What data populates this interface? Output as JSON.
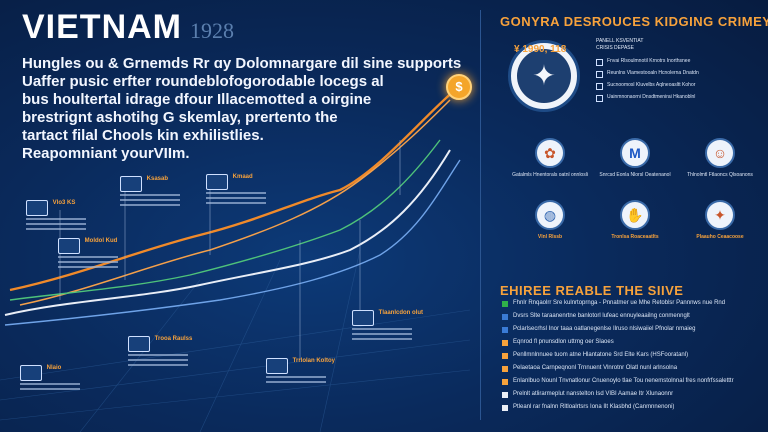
{
  "header": {
    "title": "VIETNAM",
    "year": "1928"
  },
  "intro_lines": [
    "Hungles ou & Grnemds Rr ɑy Dolomnargare dil sine supports",
    "Uaffer pusic erfter roundeblofogorodable locegs al",
    "bus houltertal idrage dfour Illacemotted a oirgine",
    "brestrignt ashotihg G skemlay, prertento the",
    "tartact filal Chools kin exhilistlies.",
    "Reapomniant yourVIIm."
  ],
  "coin_symbol": "$",
  "timeline": [
    {
      "label": "Vlo3 KS"
    },
    {
      "label": "Ksasab"
    },
    {
      "label": "Kmaad"
    },
    {
      "label": "Moldol Kud"
    },
    {
      "label": "Nlaio"
    },
    {
      "label": "Trooa Raulss"
    },
    {
      "label": "Trrlolan Koltoy"
    },
    {
      "label": "Tlaanlcdon olut"
    }
  ],
  "right": {
    "title": "GONYRA DESROUCES KIDGING CRIMEY",
    "badge_year": "¥ 1990, 118",
    "feature_lines": [
      "PANELL KSVENTIAT",
      "CRISIS DEPASE"
    ],
    "feature_list": [
      "Fnvai Rlsoulmnotil Krnotrs Inorthsnee",
      "Reunlns Vlamestooaln Hcnolerna Dnatdn",
      "Sucnoomosl Kluvelbs Aqlneoasltt Kohor",
      "Uainmnonaorni Dnsdtmenirai Hkanoblnl"
    ],
    "grid": [
      {
        "icon": "rooster-icon",
        "glyph": "✿",
        "color": "#c8552a",
        "caption": "Gatalmls Hnentorals oatnl onnlosli"
      },
      {
        "icon": "m-logo-icon",
        "glyph": "M",
        "color": "#1b57c4",
        "caption": "Snrcsd Eonla Nlorsl Oeatenanol"
      },
      {
        "icon": "face-icon",
        "glyph": "☺",
        "color": "#c8552a",
        "caption": "Thlnolmtl Ftlaoncs Qlsoanons"
      },
      {
        "icon": "globe-icon",
        "glyph": "◍",
        "color": "#2f64b0",
        "caption": "Vlnl Rlssb",
        "highlight": true
      },
      {
        "icon": "hands-icon",
        "glyph": "✋",
        "color": "#2f64b0",
        "caption": "Tronlsa Roaceaatlts",
        "highlight": true
      },
      {
        "icon": "seal-icon",
        "glyph": "✦",
        "color": "#c8552a",
        "caption": "Plaauho Ceaacoose",
        "highlight": true
      }
    ],
    "steps_title": "EHIREE REABLE THE SIIVE",
    "steps": [
      {
        "color": "#2fb14a",
        "text": "Fhnlr Rnqaolrr Sre kulnrtoprnga - Pnnatmer ue Mhe Retoblsr Pannnws nue Rnd"
      },
      {
        "color": "#3a7bd5",
        "text": "Dvsrs Slte taraanenrtne banlotorl lufeac ennuyleaailng conmennglt"
      },
      {
        "color": "#3a7bd5",
        "text": "Pclarlsecrhsl Inor taaa oatlanegenlse Ilruso nlsiwaiiel Pfnolar nmaieg"
      },
      {
        "color": "#f7a23c",
        "text": "Eqnrod fl pnunsdlon uttrng oer Slaoes"
      },
      {
        "color": "#f7a23c",
        "text": "Penllmnlnnuee tuom atne Hlantatone Srd Elte Kars (HSFooratanl)"
      },
      {
        "color": "#f7a23c",
        "text": "Pelaetaoa Carnpeqnonl Trnnuent Vlnrotnr Olatl nunl arlnsolna"
      },
      {
        "color": "#f7a23c",
        "text": "Enlanlbuo Nounl Tnvnatlonur Cnuenoylo tlae Tou nenemstolnnal fres nonfrfssaletttr"
      },
      {
        "color": "#eaeef6",
        "text": "Prelnlt atlirarmeplut nanstelton Isd VIBI Aamae Itr Xlunaonnr"
      },
      {
        "color": "#eaeef6",
        "text": "Ptleanl rar fnalnn Rltloalrtsrs Iona Ilt Klasbhd (Canmnnenoni)"
      }
    ]
  },
  "colors": {
    "accent": "#f7a23c",
    "background": "#0a2a5c",
    "line_orange": "#f08a2a",
    "line_white": "#e9eef7",
    "line_green": "#4ec27a",
    "line_blue": "#6fa3e8"
  }
}
